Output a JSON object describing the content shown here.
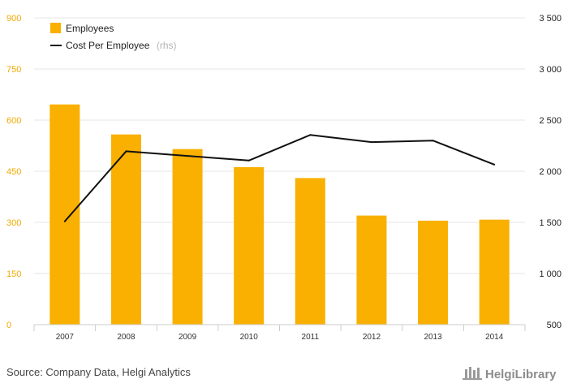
{
  "chart_data": {
    "type": "bar",
    "categories": [
      "2007",
      "2008",
      "2009",
      "2010",
      "2011",
      "2012",
      "2013",
      "2014"
    ],
    "series": [
      {
        "name": "Employees",
        "type": "bar",
        "axis": "left",
        "color": "#f9b000",
        "values": [
          646,
          558,
          515,
          462,
          430,
          320,
          305,
          308
        ]
      },
      {
        "name": "Cost Per Employee",
        "name_suffix": "(rhs)",
        "type": "line",
        "axis": "right",
        "color": "#111111",
        "values": [
          1510,
          2195,
          2150,
          2105,
          2355,
          2285,
          2300,
          2065
        ]
      }
    ],
    "y_left": {
      "lim": [
        0,
        900
      ],
      "ticks": [
        "0",
        "150",
        "300",
        "450",
        "600",
        "750",
        "900"
      ],
      "tick_values": [
        0,
        150,
        300,
        450,
        600,
        750,
        900
      ],
      "tick_color": "#f2a900"
    },
    "y_right": {
      "lim": [
        500,
        3500
      ],
      "ticks": [
        "500",
        "1 000",
        "1 500",
        "2 000",
        "2 500",
        "3 000",
        "3 500"
      ],
      "tick_values": [
        500,
        1000,
        1500,
        2000,
        2500,
        3000,
        3500
      ]
    },
    "grid": true,
    "legend_position": "top-left"
  },
  "footer": {
    "source": "Source: Company Data, Helgi Analytics",
    "brand": "HelgiLibrary"
  }
}
